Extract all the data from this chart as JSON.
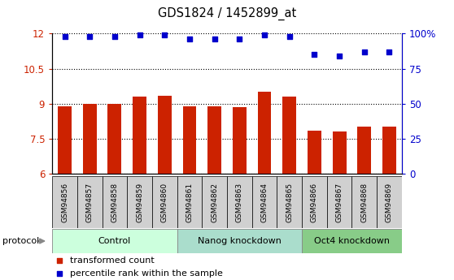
{
  "title": "GDS1824 / 1452899_at",
  "samples": [
    "GSM94856",
    "GSM94857",
    "GSM94858",
    "GSM94859",
    "GSM94860",
    "GSM94861",
    "GSM94862",
    "GSM94863",
    "GSM94864",
    "GSM94865",
    "GSM94866",
    "GSM94867",
    "GSM94868",
    "GSM94869"
  ],
  "transformed_count": [
    8.9,
    9.0,
    9.0,
    9.3,
    9.35,
    8.9,
    8.9,
    8.85,
    9.5,
    9.3,
    7.85,
    7.8,
    8.0,
    8.0
  ],
  "percentile_rank": [
    98,
    98,
    98,
    99,
    99,
    96,
    96,
    96,
    99,
    98,
    85,
    84,
    87,
    87
  ],
  "bar_color": "#cc2200",
  "dot_color": "#0000cc",
  "ylim_left": [
    6,
    12
  ],
  "ylim_right": [
    0,
    100
  ],
  "yticks_left": [
    6,
    7.5,
    9,
    10.5,
    12
  ],
  "yticks_right": [
    0,
    25,
    50,
    75,
    100
  ],
  "groups": [
    {
      "label": "Control",
      "start": 0,
      "end": 5
    },
    {
      "label": "Nanog knockdown",
      "start": 5,
      "end": 10
    },
    {
      "label": "Oct4 knockdown",
      "start": 10,
      "end": 14
    }
  ],
  "group_colors": [
    "#ccffdd",
    "#aaddcc",
    "#88cc88"
  ],
  "legend_items": [
    {
      "color": "#cc2200",
      "label": "transformed count"
    },
    {
      "color": "#0000cc",
      "label": "percentile rank within the sample"
    }
  ],
  "protocol_label": "protocol",
  "tick_bg_color": "#d0d0d0",
  "figsize": [
    5.58,
    3.45
  ],
  "dpi": 100
}
